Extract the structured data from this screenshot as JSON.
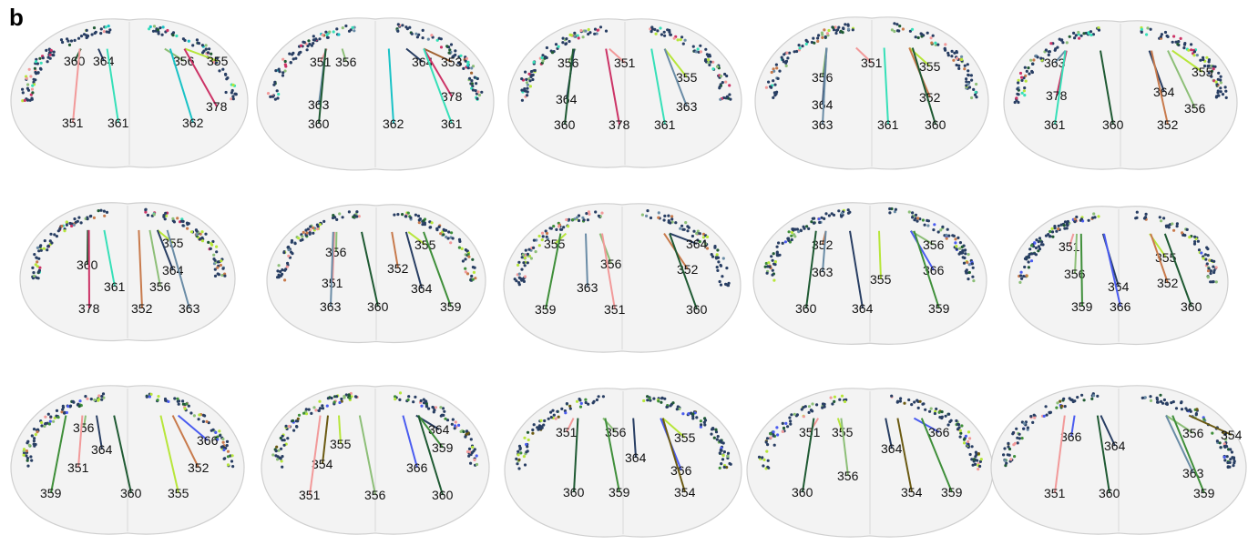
{
  "panel_letter": "b",
  "colors": {
    "351": "#f29a9a",
    "352": "#c87a4c",
    "353": "#a0622f",
    "354": "#6b5a12",
    "355": "#b7e63a",
    "356": "#8dbf78",
    "359": "#3f8f3a",
    "360": "#1f5a33",
    "361": "#36e0b8",
    "362": "#19c2c6",
    "363": "#6a8ca6",
    "364": "#283e63",
    "366": "#4a5cf0",
    "378": "#cc3366"
  },
  "sections": [
    {
      "id": "r1c1",
      "labels": [
        "360",
        "364",
        "356",
        "355",
        "351",
        "361",
        "362",
        "378"
      ]
    },
    {
      "id": "r1c2",
      "labels": [
        "351",
        "356",
        "364",
        "353",
        "378",
        "363",
        "360",
        "362",
        "361"
      ]
    },
    {
      "id": "r1c3",
      "labels": [
        "356",
        "351",
        "355",
        "364",
        "363",
        "360",
        "378",
        "361"
      ]
    },
    {
      "id": "r1c4",
      "labels": [
        "351",
        "356",
        "355",
        "364",
        "352",
        "363",
        "361",
        "360"
      ]
    },
    {
      "id": "r1c5",
      "labels": [
        "363",
        "355",
        "378",
        "364",
        "356",
        "361",
        "360",
        "352"
      ]
    },
    {
      "id": "r2c1",
      "labels": [
        "355",
        "360",
        "364",
        "361",
        "356",
        "378",
        "352",
        "363"
      ]
    },
    {
      "id": "r2c2",
      "labels": [
        "356",
        "355",
        "352",
        "351",
        "364",
        "359",
        "363",
        "360"
      ]
    },
    {
      "id": "r2c3",
      "labels": [
        "364",
        "355",
        "356",
        "352",
        "363",
        "359",
        "351",
        "360"
      ]
    },
    {
      "id": "r2c4",
      "labels": [
        "352",
        "356",
        "363",
        "366",
        "355",
        "360",
        "364",
        "359"
      ]
    },
    {
      "id": "r2c5",
      "labels": [
        "351",
        "355",
        "356",
        "352",
        "364",
        "359",
        "366",
        "360"
      ]
    },
    {
      "id": "r3c1",
      "labels": [
        "356",
        "366",
        "364",
        "351",
        "352",
        "359",
        "360",
        "355"
      ]
    },
    {
      "id": "r3c2",
      "labels": [
        "364",
        "355",
        "359",
        "354",
        "366",
        "351",
        "356",
        "360"
      ]
    },
    {
      "id": "r3c3",
      "labels": [
        "351",
        "356",
        "355",
        "364",
        "366",
        "354",
        "360",
        "359"
      ]
    },
    {
      "id": "r3c4",
      "labels": [
        "351",
        "355",
        "366",
        "364",
        "356",
        "354",
        "359",
        "360"
      ]
    },
    {
      "id": "r3c5",
      "labels": [
        "366",
        "364",
        "356",
        "354",
        "363",
        "351",
        "360",
        "359"
      ]
    }
  ]
}
